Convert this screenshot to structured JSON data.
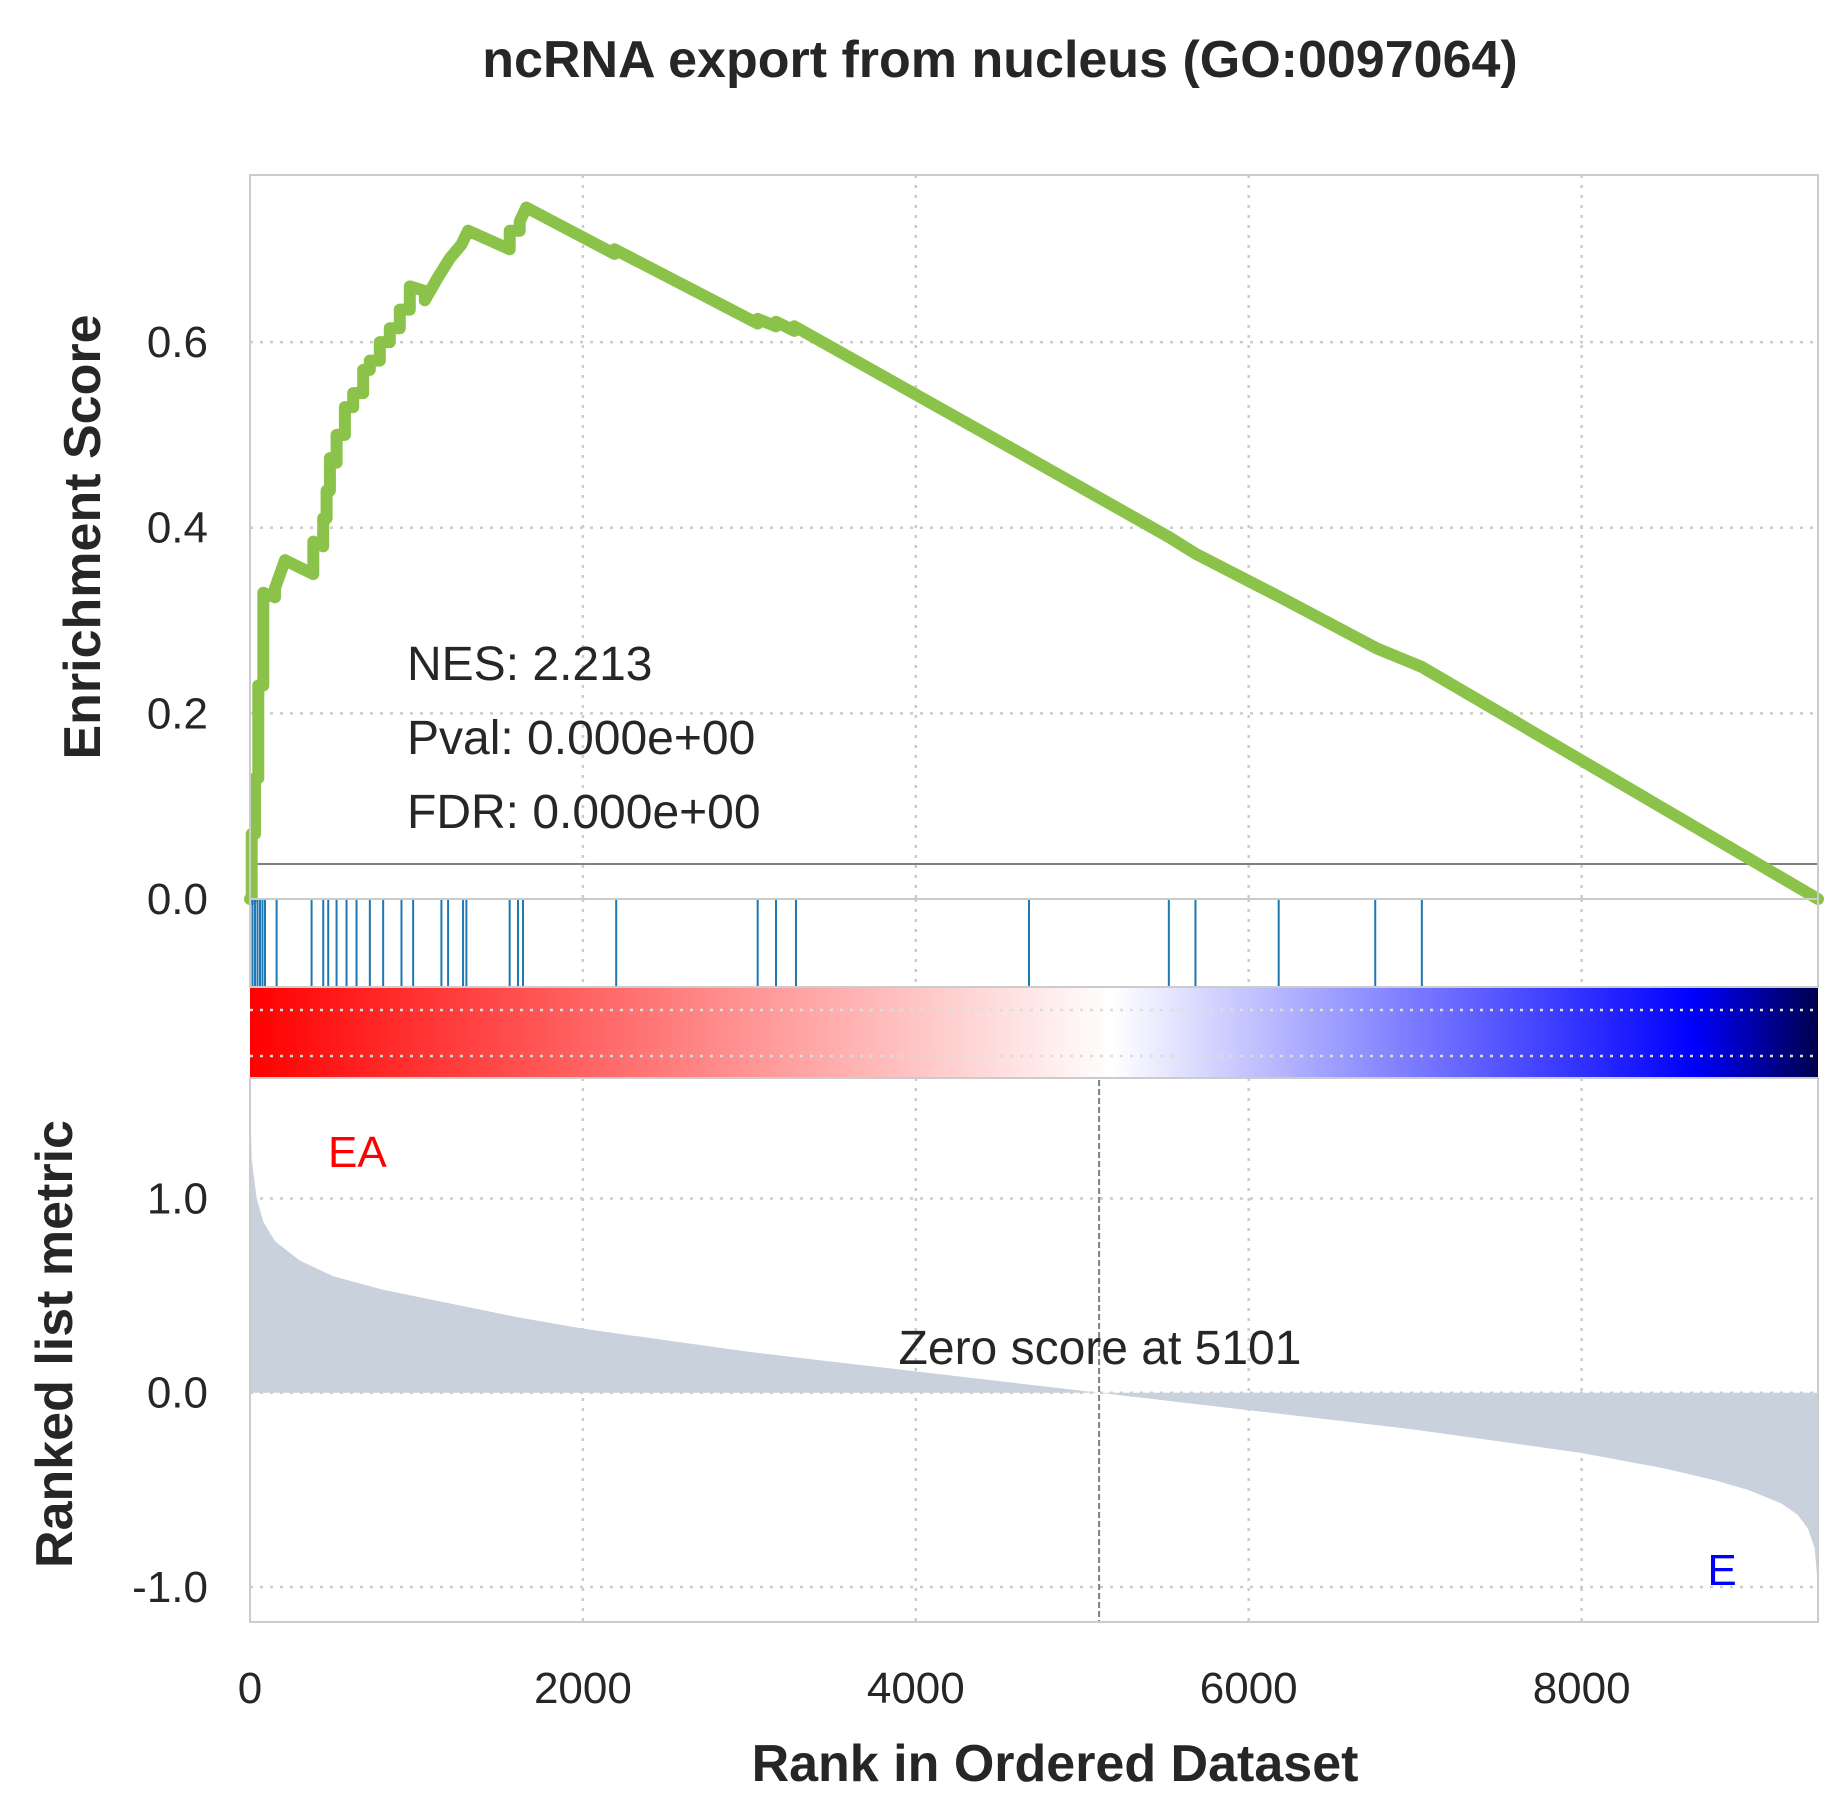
{
  "chart_data": {
    "type": "line",
    "title": "ncRNA export from nucleus (GO:0097064)",
    "xlabel": "Rank in Ordered Dataset",
    "xlim": [
      0,
      9420
    ],
    "x_ticks": [
      "0",
      "2000",
      "4000",
      "6000",
      "8000"
    ],
    "x_tick_values": [
      0,
      2000,
      4000,
      6000,
      8000
    ],
    "grid": true,
    "panels": {
      "enrichment": {
        "ylabel": "Enrichment Score",
        "ylim": [
          0,
          0.78
        ],
        "y_ticks": [
          "0.0",
          "0.2",
          "0.4",
          "0.6"
        ],
        "y_tick_values": [
          0,
          0.2,
          0.4,
          0.6
        ],
        "line_color": "#8bc34a",
        "series": {
          "x": [
            0,
            10,
            10,
            30,
            30,
            50,
            50,
            80,
            80,
            150,
            150,
            210,
            210,
            380,
            380,
            440,
            440,
            460,
            460,
            480,
            480,
            520,
            520,
            570,
            570,
            620,
            620,
            680,
            680,
            720,
            720,
            780,
            780,
            840,
            840,
            900,
            900,
            960,
            960,
            1050,
            1050,
            1130,
            1130,
            1200,
            1200,
            1270,
            1270,
            1310,
            1310,
            1560,
            1560,
            1620,
            1620,
            1660,
            1660,
            2190,
            2190,
            3050,
            3050,
            3160,
            3160,
            3270,
            3270,
            4680,
            4680,
            5520,
            5520,
            5680,
            5680,
            6190,
            6190,
            6770,
            6770,
            7040,
            7040,
            9420
          ],
          "y": [
            0,
            0,
            0.07,
            0.07,
            0.13,
            0.13,
            0.23,
            0.23,
            0.33,
            0.325,
            0.335,
            0.365,
            0.365,
            0.35,
            0.385,
            0.38,
            0.41,
            0.41,
            0.44,
            0.44,
            0.475,
            0.47,
            0.5,
            0.5,
            0.53,
            0.53,
            0.545,
            0.545,
            0.57,
            0.57,
            0.58,
            0.58,
            0.6,
            0.6,
            0.615,
            0.615,
            0.635,
            0.635,
            0.66,
            0.655,
            0.645,
            0.67,
            0.67,
            0.69,
            0.69,
            0.705,
            0.705,
            0.72,
            0.72,
            0.7,
            0.72,
            0.72,
            0.73,
            0.745,
            0.745,
            0.695,
            0.7,
            0.62,
            0.625,
            0.617,
            0.622,
            0.612,
            0.617,
            0.475,
            0.475,
            0.39,
            0.39,
            0.372,
            0.372,
            0.325,
            0.325,
            0.27,
            0.27,
            0.25,
            0.25,
            0
          ]
        },
        "annotations": [
          "NES: 2.213",
          "Pval: 0.000e+00",
          "FDR: 0.000e+00"
        ]
      },
      "hits": {
        "color": "#1f77b4",
        "positions": [
          15,
          30,
          45,
          60,
          75,
          90,
          160,
          370,
          440,
          470,
          520,
          580,
          640,
          720,
          800,
          910,
          980,
          1150,
          1190,
          1280,
          1300,
          1560,
          1610,
          1640,
          2200,
          3050,
          3160,
          3280,
          4680,
          5520,
          5680,
          6180,
          6760,
          7040
        ]
      },
      "colorbar": {
        "colormap": "seismic_r",
        "colors": [
          "#ff0000",
          "#ffffff",
          "#0000ff",
          "#00004d"
        ]
      },
      "ranked_metric": {
        "ylabel": "Ranked list metric",
        "ylim": [
          -1.18,
          1.62
        ],
        "y_ticks": [
          "1.0",
          "0.0",
          "-1.0"
        ],
        "y_tick_values": [
          1,
          0,
          -1
        ],
        "fill_color": "#c8d1dc",
        "zero_cross": 5101,
        "zero_label": "Zero score at 5101",
        "pos_label": "EA",
        "neg_label": "E",
        "pos_color": "#ff0000",
        "neg_color": "#0000ff",
        "series": {
          "x": [
            0,
            10,
            40,
            80,
            150,
            300,
            500,
            800,
            1200,
            1600,
            2000,
            2500,
            3000,
            3500,
            4000,
            4500,
            5101,
            5600,
            6000,
            6500,
            7000,
            7500,
            8000,
            8500,
            8800,
            9000,
            9200,
            9300,
            9360,
            9400,
            9420
          ],
          "y": [
            1.55,
            1.2,
            1.0,
            0.88,
            0.78,
            0.68,
            0.6,
            0.53,
            0.46,
            0.39,
            0.33,
            0.27,
            0.21,
            0.16,
            0.11,
            0.06,
            0.0,
            -0.05,
            -0.09,
            -0.14,
            -0.19,
            -0.25,
            -0.31,
            -0.39,
            -0.45,
            -0.5,
            -0.57,
            -0.63,
            -0.7,
            -0.8,
            -1.0
          ]
        }
      }
    }
  }
}
